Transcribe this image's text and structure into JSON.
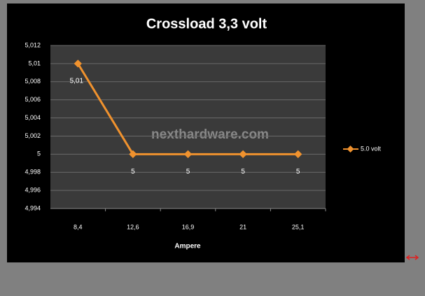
{
  "chart_data": {
    "type": "line",
    "title": "Crossload 3,3 volt",
    "x_label": "Ampere",
    "watermark": "nexthardware.com",
    "categories": [
      "8,4",
      "12,6",
      "16,9",
      "21",
      "25,1"
    ],
    "series": [
      {
        "name": "5.0 volt",
        "color": "#f0922e",
        "values": [
          5.01,
          5,
          5,
          5,
          5
        ],
        "value_labels": [
          "5,01",
          "5",
          "5",
          "5",
          "5"
        ]
      }
    ],
    "ylim": [
      4.994,
      5.012
    ],
    "yticks": [
      {
        "value": 4.994,
        "label": "4,994"
      },
      {
        "value": 4.996,
        "label": "4,996"
      },
      {
        "value": 4.998,
        "label": "4,998"
      },
      5,
      {
        "value": 5.002,
        "label": "5,002"
      },
      {
        "value": 5.004,
        "label": "5,004"
      },
      {
        "value": 5.006,
        "label": "5,006"
      },
      {
        "value": 5.008,
        "label": "5,008"
      },
      {
        "value": 5.01,
        "label": "5,01"
      },
      {
        "value": 5.012,
        "label": "5,012"
      }
    ],
    "grid": true,
    "legend": "right"
  }
}
